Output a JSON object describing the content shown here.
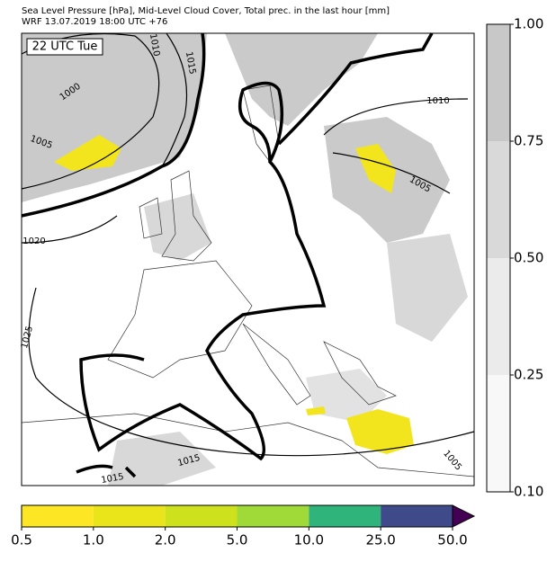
{
  "header": {
    "title": "Sea Level Pressure [hPa], Mid-Level Cloud Cover, Total prec. in the last hour [mm]",
    "subtitle": "WRF 13.07.2019 18:00 UTC +76"
  },
  "map": {
    "time_label": "22 UTC Tue",
    "isobar_labels": [
      "1010",
      "1015",
      "1000",
      "1005",
      "1010",
      "1005",
      "1020",
      "1025",
      "1015",
      "1015",
      "1005"
    ]
  },
  "cloud_colorbar": {
    "ticks": [
      "1.00",
      "0.75",
      "0.50",
      "0.25",
      "0.10"
    ],
    "colors": [
      "#c8c8c8",
      "#d9d9d9",
      "#ebebeb",
      "#f8f8f8"
    ]
  },
  "precip_colorbar": {
    "ticks": [
      "0.5",
      "1.0",
      "2.0",
      "5.0",
      "10.0",
      "25.0",
      "50.0"
    ],
    "colors": [
      "#fde725",
      "#eae51a",
      "#cde11d",
      "#a0da39",
      "#2fb47c",
      "#3e4a89"
    ],
    "extend_color": "#440154"
  }
}
